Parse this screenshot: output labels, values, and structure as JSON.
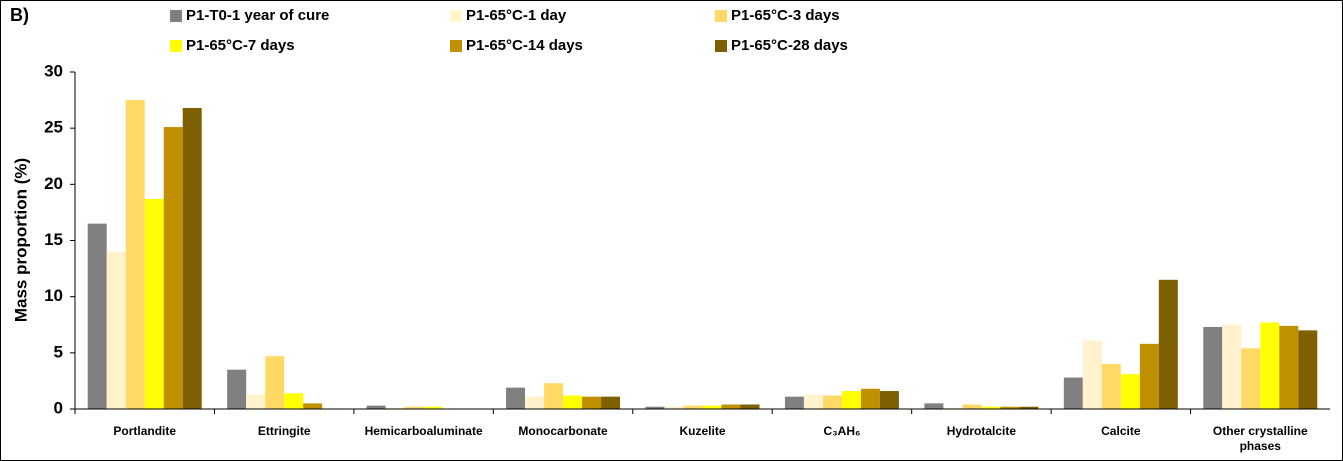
{
  "chart_data": {
    "type": "bar",
    "panel_label": "B)",
    "y_label": "Mass proportion (%)",
    "categories": [
      "Portlandite",
      "Ettringite",
      "Hemicarboaluminate",
      "Monocarbonate",
      "Kuzelite",
      "C₃AH₆",
      "Hydrotalcite",
      "Calcite",
      "Other crystalline phases"
    ],
    "series": [
      {
        "name": "P1-T0-1 year of cure",
        "color": "#808080",
        "values": [
          16.5,
          3.5,
          0.3,
          1.9,
          0.2,
          1.1,
          0.5,
          2.8,
          7.3
        ]
      },
      {
        "name": "P1-65°C-1 day",
        "color": "#FFF2CC",
        "values": [
          14.0,
          1.3,
          0.1,
          1.1,
          0.2,
          1.3,
          0.1,
          6.1,
          7.5
        ]
      },
      {
        "name": "P1-65°C-3 days",
        "color": "#FFD966",
        "values": [
          27.5,
          4.7,
          0.2,
          2.3,
          0.3,
          1.2,
          0.4,
          4.0,
          5.4
        ]
      },
      {
        "name": "P1-65°C-7 days",
        "color": "#FFFF00",
        "values": [
          18.7,
          1.4,
          0.2,
          1.2,
          0.3,
          1.6,
          0.2,
          3.1,
          7.7
        ]
      },
      {
        "name": "P1-65°C-14 days",
        "color": "#BF9000",
        "values": [
          25.1,
          0.5,
          0,
          1.1,
          0.4,
          1.8,
          0.2,
          5.8,
          7.4
        ]
      },
      {
        "name": "P1-65°C-28 days",
        "color": "#7F6000",
        "values": [
          26.8,
          0,
          0,
          1.1,
          0.4,
          1.6,
          0.2,
          11.5,
          7.0
        ]
      }
    ],
    "ylim": [
      0,
      30
    ],
    "yticks": [
      0,
      5,
      10,
      15,
      20,
      25,
      30
    ],
    "grid": false
  }
}
